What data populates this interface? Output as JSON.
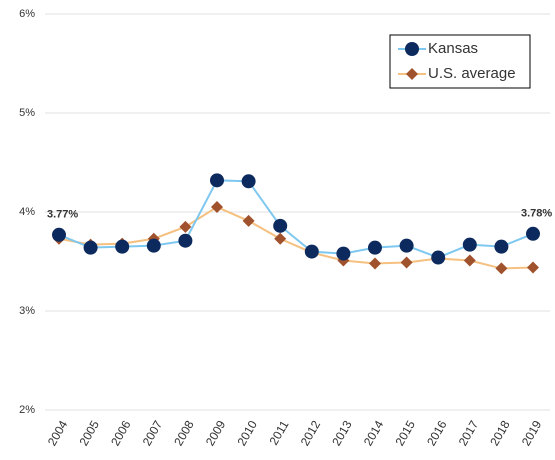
{
  "chart_data": {
    "type": "line",
    "categories": [
      "2004",
      "2005",
      "2006",
      "2007",
      "2008",
      "2009",
      "2010",
      "2011",
      "2012",
      "2013",
      "2014",
      "2015",
      "2016",
      "2017",
      "2018",
      "2019"
    ],
    "series": [
      {
        "name": "Kansas",
        "color": "#0d2a5e",
        "line_color": "#7ec8f0",
        "marker": "circle",
        "values": [
          3.77,
          3.64,
          3.65,
          3.66,
          3.71,
          4.32,
          4.31,
          3.86,
          3.6,
          3.58,
          3.64,
          3.66,
          3.54,
          3.67,
          3.65,
          3.78
        ],
        "value_labels": [
          "3.77%",
          null,
          null,
          null,
          null,
          null,
          null,
          null,
          null,
          null,
          null,
          null,
          null,
          null,
          null,
          "3.78%"
        ]
      },
      {
        "name": "U.S. average",
        "color": "#a0522d",
        "line_color": "#f5c080",
        "marker": "diamond",
        "values": [
          3.73,
          3.67,
          3.68,
          3.73,
          3.85,
          4.05,
          3.91,
          3.73,
          3.59,
          3.51,
          3.48,
          3.49,
          3.53,
          3.51,
          3.43,
          3.44
        ]
      }
    ],
    "ylim": [
      2,
      6
    ],
    "yticks": [
      {
        "value": 2,
        "label": "2%"
      },
      {
        "value": 3,
        "label": "3%"
      },
      {
        "value": 4,
        "label": "4%"
      },
      {
        "value": 5,
        "label": "5%"
      },
      {
        "value": 6,
        "label": "6%"
      }
    ],
    "grid": true,
    "legend": "top-right"
  }
}
